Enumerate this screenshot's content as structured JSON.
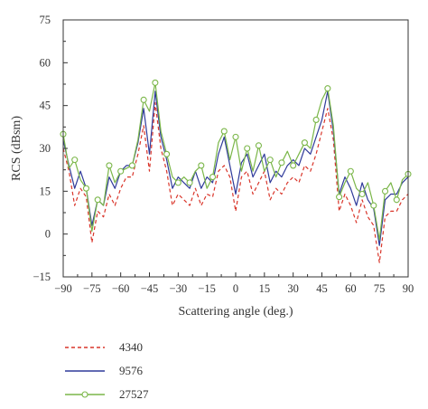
{
  "chart_data": {
    "type": "line",
    "title": "",
    "xlabel": "Scattering angle (deg.)",
    "ylabel": "RCS (dBsm)",
    "xlim": [
      -90,
      90
    ],
    "ylim": [
      -15,
      75
    ],
    "xticks": [
      -90,
      -75,
      -60,
      -45,
      -30,
      -15,
      0,
      15,
      30,
      45,
      60,
      75,
      90
    ],
    "yticks": [
      -15,
      0,
      15,
      30,
      45,
      60,
      75
    ],
    "xtick_labels": [
      "−90",
      "−75",
      "−60",
      "−45",
      "−30",
      "−15",
      "0",
      "15",
      "30",
      "45",
      "60",
      "75",
      "90"
    ],
    "ytick_labels": [
      "−15",
      "0",
      "15",
      "30",
      "45",
      "60",
      "75"
    ],
    "grid": false,
    "legend_position": "bottom-left",
    "x": [
      -90,
      -87,
      -84,
      -81,
      -78,
      -75,
      -72,
      -69,
      -66,
      -63,
      -60,
      -57,
      -54,
      -51,
      -48,
      -45,
      -42,
      -39,
      -36,
      -33,
      -30,
      -27,
      -24,
      -21,
      -18,
      -15,
      -12,
      -9,
      -6,
      -3,
      0,
      3,
      6,
      9,
      12,
      15,
      18,
      21,
      24,
      27,
      30,
      33,
      36,
      39,
      42,
      45,
      48,
      51,
      54,
      57,
      60,
      63,
      66,
      69,
      72,
      75,
      78,
      81,
      84,
      87,
      90
    ],
    "series": [
      {
        "name": "4340",
        "color": "#d9352a",
        "style": "dashed",
        "marker": "none",
        "values": [
          30,
          22,
          10,
          16,
          13,
          -3,
          8,
          6,
          14,
          10,
          16,
          20,
          20,
          28,
          38,
          22,
          46,
          30,
          22,
          10,
          14,
          12,
          10,
          16,
          10,
          14,
          13,
          22,
          24,
          20,
          8,
          20,
          22,
          14,
          18,
          22,
          12,
          16,
          14,
          18,
          20,
          18,
          24,
          22,
          28,
          36,
          44,
          33,
          8,
          14,
          10,
          4,
          12,
          6,
          3,
          -10,
          6,
          8,
          8,
          12,
          14
        ]
      },
      {
        "name": "9576",
        "color": "#2f3a9a",
        "style": "solid",
        "marker": "none",
        "values": [
          33,
          24,
          16,
          22,
          16,
          3,
          12,
          10,
          20,
          16,
          22,
          24,
          24,
          32,
          44,
          28,
          50,
          34,
          26,
          16,
          20,
          18,
          16,
          22,
          16,
          20,
          18,
          28,
          34,
          24,
          14,
          25,
          28,
          20,
          24,
          28,
          18,
          22,
          20,
          24,
          26,
          24,
          30,
          28,
          34,
          40,
          50,
          36,
          14,
          20,
          16,
          10,
          18,
          12,
          9,
          -4,
          12,
          14,
          14,
          18,
          20
        ]
      },
      {
        "name": "27527",
        "color": "#7ab648",
        "style": "solid",
        "marker": "circle",
        "values": [
          35,
          23,
          26,
          19,
          16,
          1,
          12,
          10,
          24,
          18,
          22,
          23,
          24,
          33,
          47,
          43,
          53,
          36,
          28,
          20,
          18,
          20,
          18,
          22,
          24,
          16,
          20,
          32,
          36,
          26,
          34,
          22,
          30,
          22,
          31,
          22,
          26,
          20,
          25,
          29,
          24,
          28,
          32,
          30,
          40,
          47,
          51,
          38,
          13,
          18,
          22,
          16,
          14,
          18,
          10,
          -2,
          15,
          18,
          12,
          19,
          21
        ]
      }
    ]
  }
}
